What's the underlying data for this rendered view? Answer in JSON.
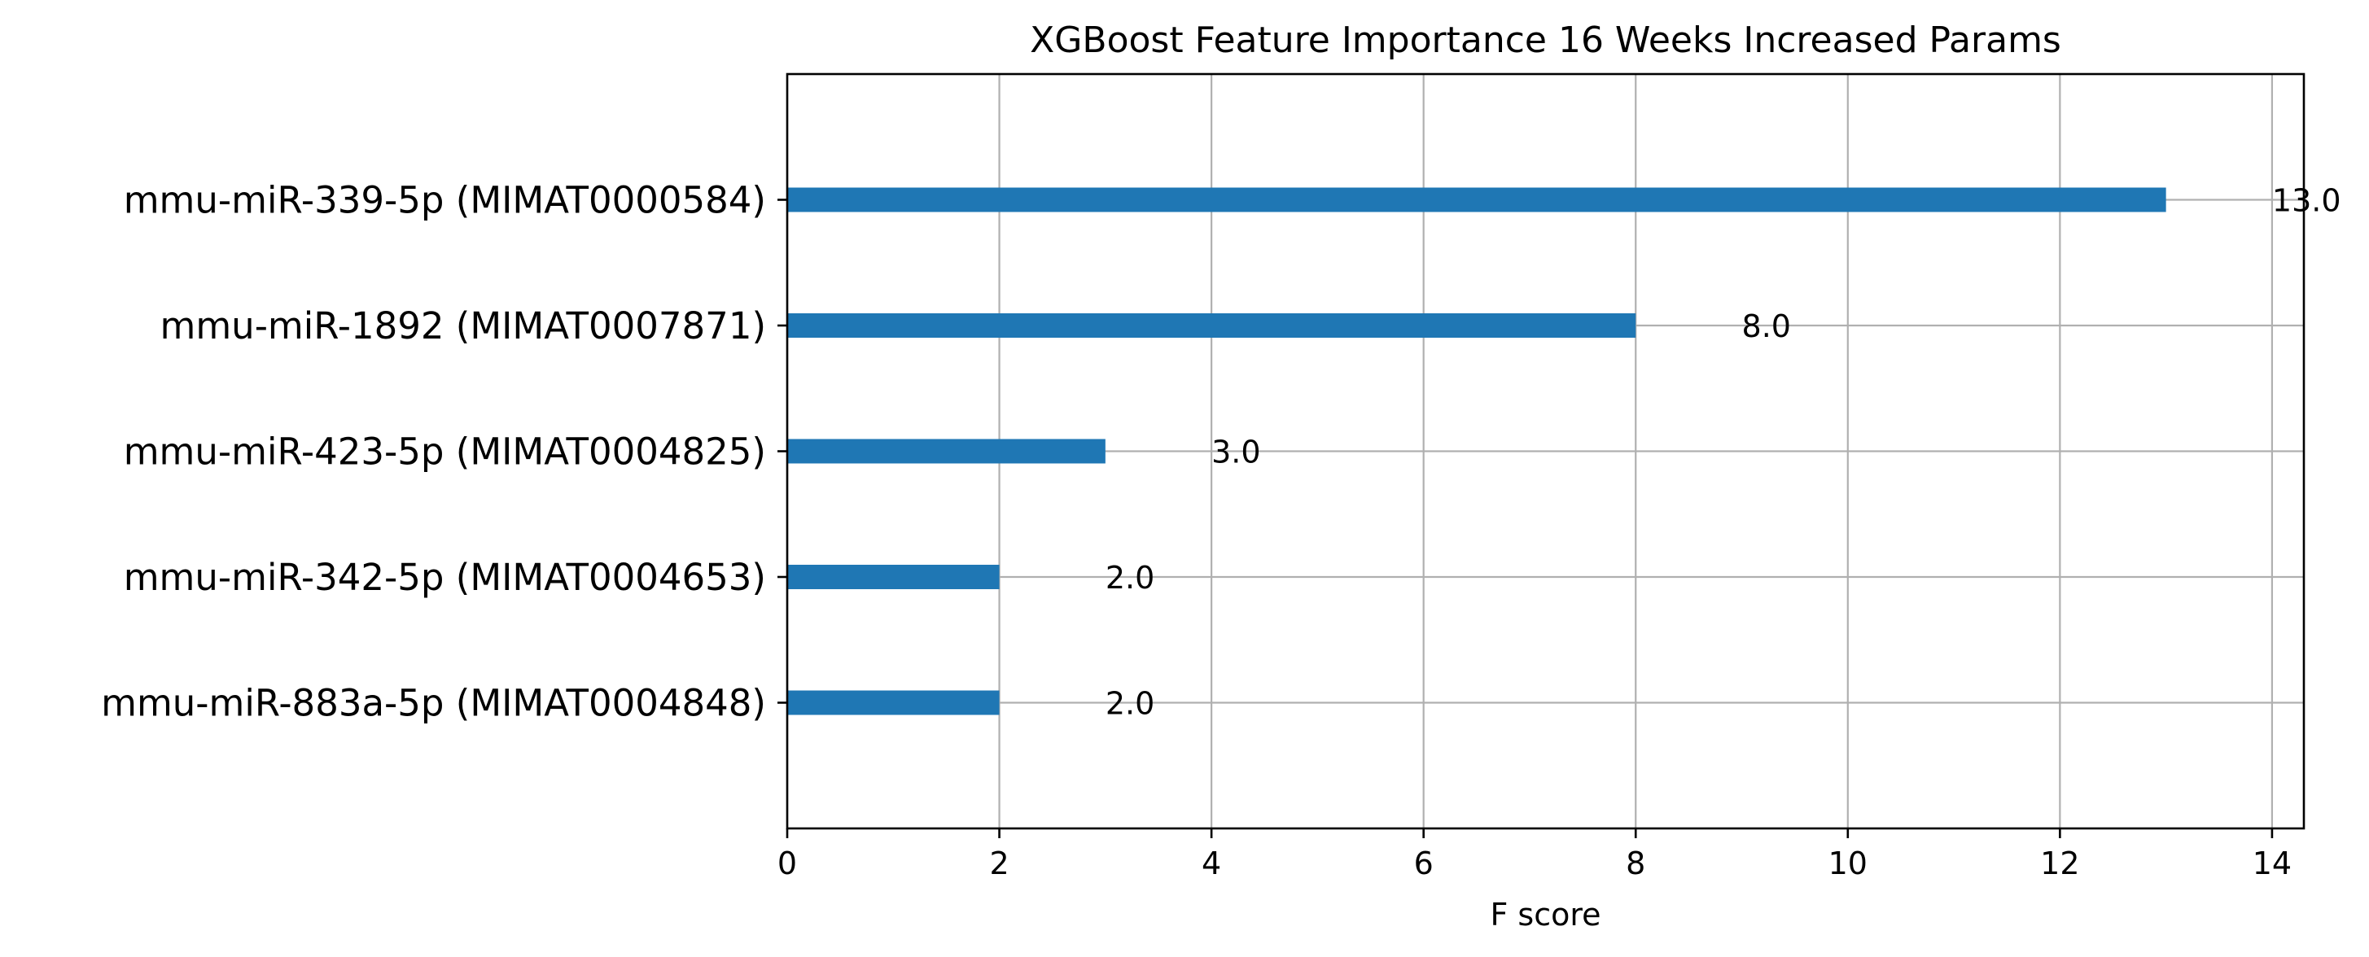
{
  "chart_data": {
    "type": "bar",
    "orientation": "horizontal",
    "title": "XGBoost Feature Importance 16 Weeks Increased Params",
    "xlabel": "F score",
    "ylabel": "",
    "xlim": [
      0,
      14.3
    ],
    "xticks": [
      0,
      2,
      4,
      6,
      8,
      10,
      12,
      14
    ],
    "grid": true,
    "categories": [
      "mmu-miR-339-5p (MIMAT0000584)",
      "mmu-miR-1892 (MIMAT0007871)",
      "mmu-miR-423-5p (MIMAT0004825)",
      "mmu-miR-342-5p (MIMAT0004653)",
      "mmu-miR-883a-5p (MIMAT0004848)"
    ],
    "values": [
      13.0,
      8.0,
      3.0,
      2.0,
      2.0
    ],
    "value_labels": [
      "13.0",
      "8.0",
      "3.0",
      "2.0",
      "2.0"
    ],
    "bar_color": "#1f77b4"
  }
}
